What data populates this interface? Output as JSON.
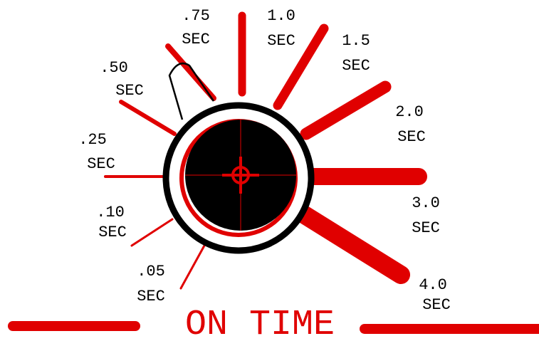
{
  "dial": {
    "settings": [
      {
        "value": ".05",
        "unit": "SEC"
      },
      {
        "value": ".10",
        "unit": "SEC"
      },
      {
        "value": ".25",
        "unit": "SEC"
      },
      {
        "value": ".50",
        "unit": "SEC"
      },
      {
        "value": ".75",
        "unit": "SEC"
      },
      {
        "value": "1.0",
        "unit": "SEC"
      },
      {
        "value": "1.5",
        "unit": "SEC"
      },
      {
        "value": "2.0",
        "unit": "SEC"
      },
      {
        "value": "3.0",
        "unit": "SEC"
      },
      {
        "value": "4.0",
        "unit": "SEC"
      }
    ],
    "title": "ON TIME"
  }
}
